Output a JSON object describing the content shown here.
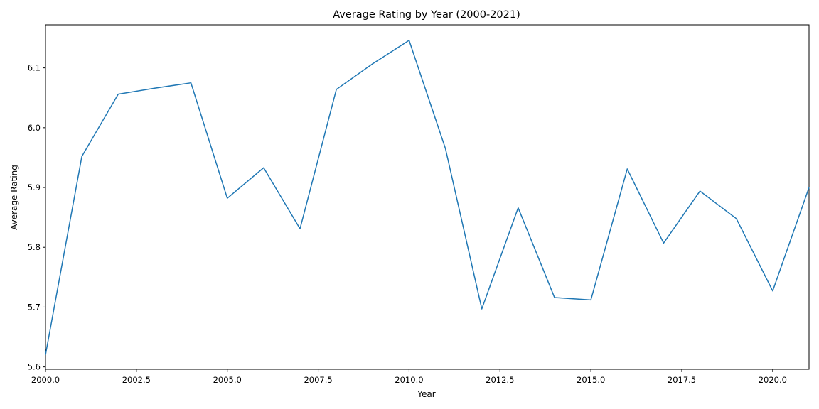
{
  "chart_data": {
    "type": "line",
    "title": "Average Rating by Year (2000-2021)",
    "xlabel": "Year",
    "ylabel": "Average Rating",
    "xlim": [
      2000,
      2021
    ],
    "ylim": [
      5.596,
      6.172
    ],
    "xticks": [
      2000.0,
      2002.5,
      2005.0,
      2007.5,
      2010.0,
      2012.5,
      2015.0,
      2017.5,
      2020.0
    ],
    "xtick_labels": [
      "2000.0",
      "2002.5",
      "2005.0",
      "2007.5",
      "2010.0",
      "2012.5",
      "2015.0",
      "2017.5",
      "2020.0"
    ],
    "yticks": [
      5.6,
      5.7,
      5.8,
      5.9,
      6.0,
      6.1
    ],
    "ytick_labels": [
      "5.6",
      "5.7",
      "5.8",
      "5.9",
      "6.0",
      "6.1"
    ],
    "grid": false,
    "series": [
      {
        "color": "#1f77b4",
        "x": [
          2000,
          2001,
          2002,
          2003,
          2004,
          2005,
          2006,
          2007,
          2008,
          2009,
          2010,
          2011,
          2012,
          2013,
          2014,
          2015,
          2016,
          2017,
          2018,
          2019,
          2020,
          2021
        ],
        "y": [
          5.62,
          5.952,
          6.056,
          6.066,
          6.075,
          5.882,
          5.933,
          5.831,
          6.064,
          6.107,
          6.146,
          5.965,
          5.697,
          5.866,
          5.716,
          5.712,
          5.931,
          5.807,
          5.894,
          5.848,
          5.727,
          5.9
        ]
      }
    ]
  }
}
